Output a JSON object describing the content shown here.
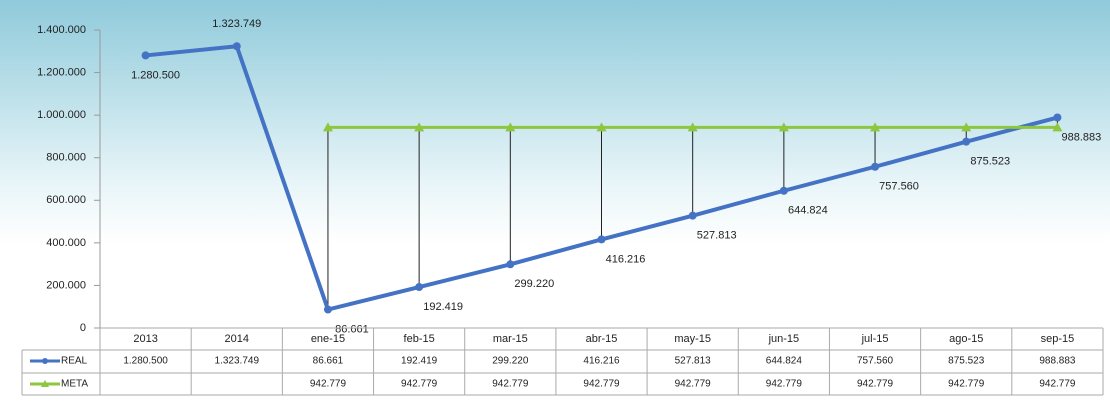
{
  "chart_data": {
    "type": "line",
    "categories": [
      "2013",
      "2014",
      "ene-15",
      "feb-15",
      "mar-15",
      "abr-15",
      "may-15",
      "jun-15",
      "jul-15",
      "ago-15",
      "sep-15"
    ],
    "series": [
      {
        "name": "REAL",
        "color": "#4472c4",
        "values": [
          1280500,
          1323749,
          86661,
          192419,
          299220,
          416216,
          527813,
          644824,
          757560,
          875523,
          988883
        ],
        "value_labels": [
          "1.280.500",
          "1.323.749",
          "86.661",
          "192.419",
          "299.220",
          "416.216",
          "527.813",
          "644.824",
          "757.560",
          "875.523",
          "988.883"
        ]
      },
      {
        "name": "META",
        "color": "#8dc63f",
        "values": [
          null,
          null,
          942779,
          942779,
          942779,
          942779,
          942779,
          942779,
          942779,
          942779,
          942779
        ],
        "value_labels": [
          null,
          null,
          "942.779",
          "942.779",
          "942.779",
          "942.779",
          "942.779",
          "942.779",
          "942.779",
          "942.779",
          "942.779"
        ]
      }
    ],
    "ylim": [
      0,
      1400000
    ],
    "yticks": [
      0,
      {
        "value": 200000,
        "label": "200.000"
      },
      {
        "value": 400000,
        "label": "400.000"
      },
      {
        "value": 600000,
        "label": "600.000"
      },
      {
        "value": 800000,
        "label": "800.000"
      },
      {
        "value": 1000000,
        "label": "1.000.000"
      },
      {
        "value": 1200000,
        "label": "1.200.000"
      },
      {
        "value": 1400000,
        "label": "1.400.000"
      }
    ],
    "drop_lines": true,
    "data_table": true
  }
}
